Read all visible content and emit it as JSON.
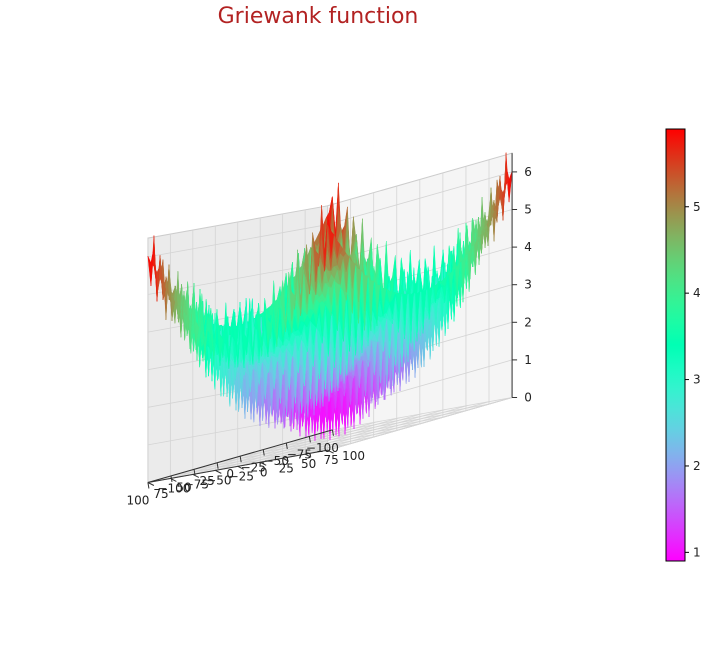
{
  "title": {
    "text": "Griewank function",
    "color": "#b22222"
  },
  "chart_data": {
    "type": "surface3d",
    "function": "Griewank",
    "x": [
      -100,
      -90,
      -80,
      -70,
      -60,
      -50,
      -40,
      -30,
      -20,
      -10,
      0,
      10,
      20,
      30,
      40,
      50,
      60,
      70,
      80,
      90,
      100
    ],
    "y": [
      -100,
      -90,
      -80,
      -70,
      -60,
      -50,
      -40,
      -30,
      -20,
      -10,
      0,
      10,
      20,
      30,
      40,
      50,
      60,
      70,
      80,
      90,
      100
    ],
    "xlim": [
      -100,
      100
    ],
    "ylim": [
      -100,
      100
    ],
    "zlim": [
      0,
      6.5
    ],
    "x_ticks": [
      "−100",
      "−75",
      "−50",
      "−25",
      "0",
      "25",
      "50",
      "75",
      "100"
    ],
    "y_ticks": [
      "−100",
      "−75",
      "−50",
      "−25",
      "0",
      "25",
      "50",
      "75",
      "100"
    ],
    "z_ticks": [
      "0",
      "1",
      "2",
      "3",
      "4",
      "5",
      "6"
    ],
    "colormap": "rainbow",
    "colorbar": {
      "min": 0.9,
      "max": 5.9,
      "ticks": [
        "1",
        "2",
        "3",
        "4",
        "5"
      ]
    },
    "grid": true
  }
}
